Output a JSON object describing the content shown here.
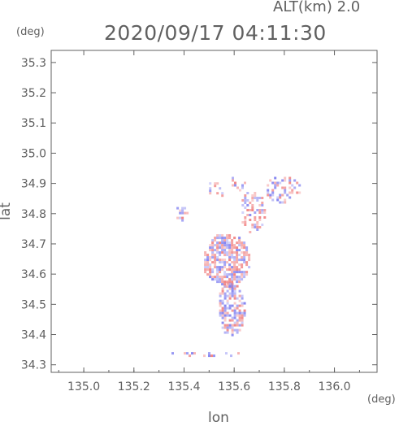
{
  "header": {
    "alt_label": "ALT(km) 2.0",
    "datetime": "2020/09/17 04:11:30"
  },
  "chart_data": {
    "type": "heatmap",
    "title": "2020/09/17 04:11:30",
    "subtitle": "ALT(km) 2.0",
    "xlabel": "lon",
    "ylabel": "lat",
    "x_unit": "(deg)",
    "y_unit": "(deg)",
    "xlim": [
      134.87,
      136.17
    ],
    "ylim": [
      34.275,
      35.34
    ],
    "x_ticks": [
      "135.0",
      "135.2",
      "135.4",
      "135.6",
      "135.8",
      "136.0"
    ],
    "x_tick_values": [
      135.0,
      135.2,
      135.4,
      135.6,
      135.8,
      136.0
    ],
    "y_ticks": [
      "34.3",
      "34.4",
      "34.5",
      "34.6",
      "34.7",
      "34.8",
      "34.9",
      "35.0",
      "35.1",
      "35.2",
      "35.3"
    ],
    "y_tick_values": [
      34.3,
      34.4,
      34.5,
      34.6,
      34.7,
      34.8,
      34.9,
      35.0,
      35.1,
      35.2,
      35.3
    ],
    "grid": false,
    "colors": {
      "positive": "#f08080",
      "negative": "#8080f0",
      "frame": "#606060"
    },
    "echo_regions": [
      {
        "lon": [
          135.47,
          135.66
        ],
        "lat": [
          34.56,
          34.74
        ],
        "density": 0.7
      },
      {
        "lon": [
          135.53,
          135.64
        ],
        "lat": [
          34.4,
          34.58
        ],
        "density": 0.65
      },
      {
        "lon": [
          135.62,
          135.72
        ],
        "lat": [
          34.74,
          34.88
        ],
        "density": 0.45
      },
      {
        "lon": [
          135.72,
          135.86
        ],
        "lat": [
          34.84,
          34.93
        ],
        "density": 0.4
      },
      {
        "lon": [
          135.35,
          135.41
        ],
        "lat": [
          34.78,
          34.83
        ],
        "density": 0.5
      },
      {
        "lon": [
          135.48,
          135.56
        ],
        "lat": [
          34.85,
          34.92
        ],
        "density": 0.25
      },
      {
        "lon": [
          135.34,
          135.62
        ],
        "lat": [
          34.33,
          34.35
        ],
        "density": 0.3
      },
      {
        "lon": [
          135.58,
          135.64
        ],
        "lat": [
          34.88,
          34.93
        ],
        "density": 0.2
      }
    ]
  }
}
